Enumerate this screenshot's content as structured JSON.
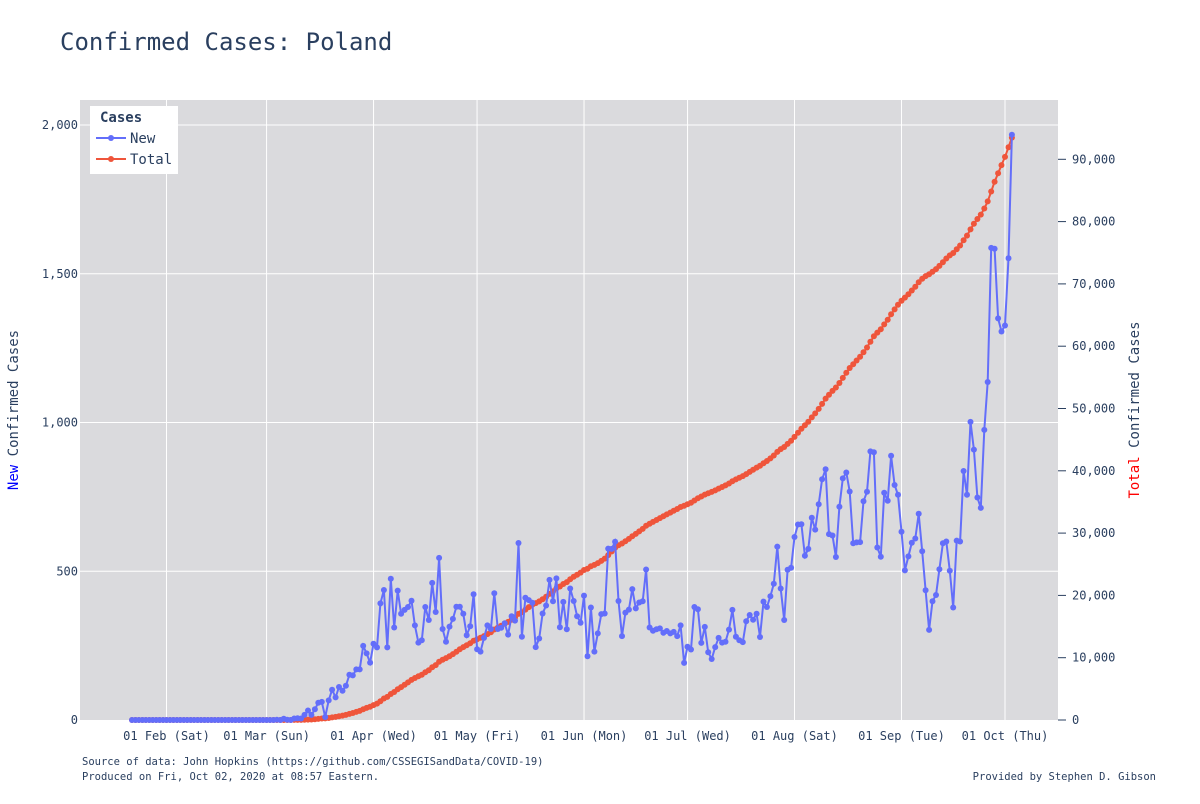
{
  "chart_data": {
    "type": "line",
    "title": "Confirmed Cases: Poland",
    "x_range": [
      "2020-01-22",
      "2020-10-01"
    ],
    "x_ticks": [
      {
        "date": "2020-02-01",
        "label": "01 Feb (Sat)"
      },
      {
        "date": "2020-03-01",
        "label": "01 Mar (Sun)"
      },
      {
        "date": "2020-04-01",
        "label": "01 Apr (Wed)"
      },
      {
        "date": "2020-05-01",
        "label": "01 May (Fri)"
      },
      {
        "date": "2020-06-01",
        "label": "01 Jun (Mon)"
      },
      {
        "date": "2020-07-01",
        "label": "01 Jul (Wed)"
      },
      {
        "date": "2020-08-01",
        "label": "01 Aug (Sat)"
      },
      {
        "date": "2020-09-01",
        "label": "01 Sep (Tue)"
      },
      {
        "date": "2020-10-01",
        "label": "01 Oct (Thu)"
      }
    ],
    "y_left": {
      "label_prefix": "New",
      "label_rest": " Confirmed Cases",
      "range": [
        0,
        2000
      ],
      "ticks": [
        0,
        500,
        1000,
        1500,
        2000
      ],
      "tick_labels": [
        "0",
        "500",
        "1,000",
        "1,500",
        "2,000"
      ]
    },
    "y_right": {
      "label_prefix": "Total",
      "label_rest": " Confirmed Cases",
      "range": [
        0,
        93900
      ],
      "ticks": [
        0,
        10000,
        20000,
        30000,
        40000,
        50000,
        60000,
        70000,
        80000,
        90000
      ],
      "tick_labels": [
        "0",
        "10,000",
        "20,000",
        "30,000",
        "40,000",
        "50,000",
        "60,000",
        "70,000",
        "80,000",
        "90,000"
      ]
    },
    "legend": {
      "title": "Cases",
      "position": "top-left"
    },
    "grid": true,
    "colors": {
      "new": "#636efa",
      "total": "#ef553b",
      "left_prefix": "#0000ff",
      "right_prefix": "#ff0000",
      "plot_bg": "#dadadd",
      "grid": "#ffffff"
    },
    "series": [
      {
        "name": "New",
        "axis": "left",
        "start_date": "2020-03-04",
        "values": [
          1,
          0,
          4,
          1,
          0,
          5,
          6,
          5,
          17,
          32,
          17,
          36,
          58,
          61,
          10,
          66,
          102,
          76,
          111,
          98,
          115,
          152,
          150,
          170,
          170,
          249,
          224,
          193,
          256,
          244,
          392,
          437,
          244,
          475,
          311,
          435,
          357,
          370,
          380,
          401,
          318,
          260,
          268,
          380,
          336,
          461,
          363,
          545,
          306,
          263,
          314,
          340,
          381,
          381,
          357,
          285,
          315,
          423,
          238,
          230,
          276,
          318,
          306,
          426,
          306,
          310,
          325,
          287,
          349,
          334,
          595,
          280,
          411,
          403,
          394,
          245,
          274,
          358,
          385,
          471,
          399,
          476,
          312,
          397,
          305,
          442,
          400,
          349,
          327,
          418,
          214,
          378,
          230,
          291,
          356,
          358,
          576,
          575,
          599,
          400,
          282,
          361,
          371,
          440,
          375,
          395,
          399,
          506,
          311,
          300,
          305,
          308,
          293,
          299,
          291,
          296,
          282,
          318,
          192,
          246,
          237,
          380,
          372,
          259,
          313,
          228,
          205,
          245,
          276,
          260,
          263,
          304,
          370,
          280,
          268,
          262,
          332,
          353,
          337,
          357,
          279,
          398,
          380,
          416,
          458,
          583,
          442,
          336,
          505,
          512,
          615,
          657,
          658,
          552,
          575,
          680,
          640,
          725,
          809,
          843,
          625,
          620,
          548,
          717,
          812,
          832,
          768,
          594,
          597,
          598,
          735,
          767,
          903,
          900,
          580,
          549,
          764,
          737,
          888,
          790,
          757,
          633,
          503,
          550,
          596,
          610,
          693,
          567,
          436,
          303,
          399,
          420,
          507,
          594,
          600,
          502,
          378,
          603,
          600,
          837,
          757,
          1002,
          909,
          748,
          713,
          975,
          1136,
          1587,
          1584,
          1350,
          1306,
          1326,
          1552,
          1967
        ]
      },
      {
        "name": "Total",
        "axis": "right",
        "start_date": "2020-03-04",
        "values": [
          1,
          1,
          5,
          6,
          6,
          11,
          17,
          22,
          39,
          71,
          88,
          124,
          182,
          243,
          253,
          319,
          421,
          497,
          608,
          706,
          821,
          973,
          1123,
          1293,
          1463,
          1712,
          1936,
          2129,
          2385,
          2629,
          3021,
          3458,
          3702,
          4177,
          4488,
          4923,
          5280,
          5650,
          6030,
          6431,
          6749,
          7009,
          7277,
          7657,
          7993,
          8454,
          8817,
          9362,
          9668,
          9931,
          10245,
          10585,
          10966,
          11347,
          11704,
          11989,
          12304,
          12727,
          12965,
          13195,
          13471,
          13789,
          14095,
          14521,
          14827,
          15137,
          15462,
          15749,
          16098,
          16432,
          17027,
          17307,
          17718,
          18121,
          18515,
          18760,
          19034,
          19392,
          19777,
          20248,
          20647,
          21123,
          21435,
          21832,
          22137,
          22579,
          22979,
          23328,
          23655,
          24073,
          24287,
          24665,
          24895,
          25186,
          25542,
          25900,
          26476,
          27051,
          27650,
          28050,
          28332,
          28693,
          29064,
          29504,
          29879,
          30274,
          30673,
          31179,
          31490,
          31790,
          32095,
          32403,
          32696,
          32995,
          33286,
          33582,
          33864,
          34182,
          34374,
          34620,
          34857,
          35237,
          35609,
          35868,
          36181,
          36409,
          36614,
          36859,
          37135,
          37395,
          37658,
          37962,
          38332,
          38612,
          38880,
          39142,
          39474,
          39827,
          40164,
          40521,
          40800,
          41198,
          41578,
          41994,
          42452,
          43035,
          43477,
          43813,
          44318,
          44830,
          45445,
          46102,
          46760,
          47312,
          47887,
          48567,
          49207,
          49932,
          50741,
          51584,
          52209,
          52829,
          53377,
          54094,
          54906,
          55738,
          56506,
          57100,
          57697,
          58295,
          59030,
          59797,
          60700,
          61600,
          62180,
          62729,
          63493,
          64230,
          65118,
          65908,
          66665,
          67298,
          67801,
          68351,
          68947,
          69557,
          70250,
          70817,
          71253,
          71556,
          71955,
          72375,
          72882,
          73476,
          74076,
          74578,
          74956,
          75559,
          76159,
          76996,
          77753,
          78755,
          79664,
          80412,
          81125,
          82100,
          83236,
          84823,
          86407,
          87757,
          89063,
          90389,
          91941,
          93481
        ]
      }
    ],
    "footer": {
      "source": "Source of data: John Hopkins (https://github.com/CSSEGISandData/COVID-19)",
      "produced": "Produced on Fri, Oct 02, 2020 at 08:57 Eastern.",
      "credit": "Provided by Stephen D. Gibson"
    }
  }
}
